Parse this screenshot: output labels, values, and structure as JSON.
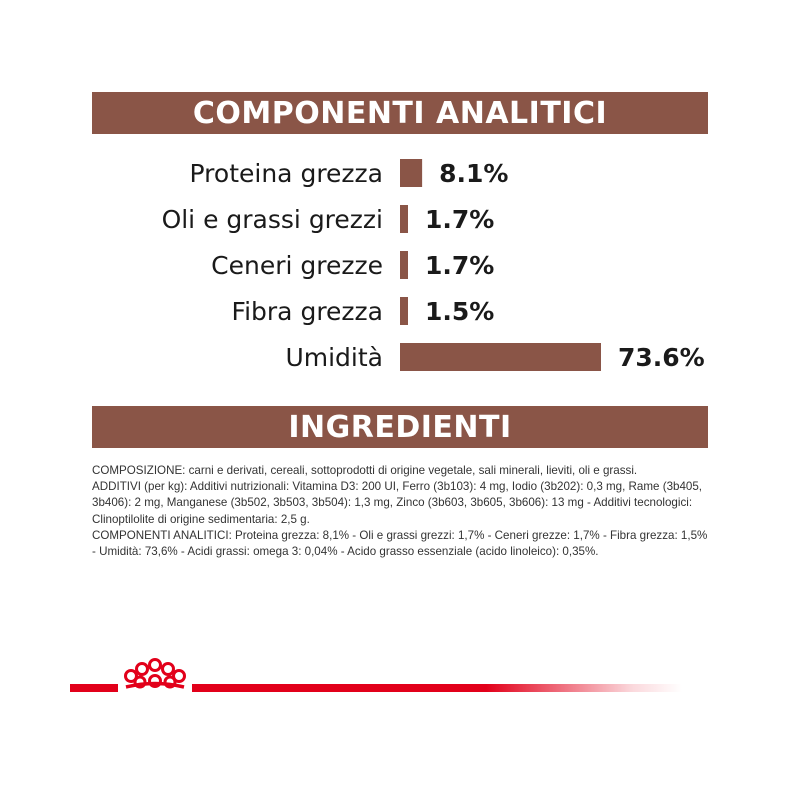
{
  "header": {
    "title": "COMPONENTI ANALITICI"
  },
  "ingredients_header": {
    "title": "INGREDIENTI"
  },
  "chart_data": {
    "type": "bar",
    "orientation": "horizontal",
    "categories": [
      "Proteina grezza",
      "Oli e grassi grezzi",
      "Ceneri grezze",
      "Fibra grezza",
      "Umidità"
    ],
    "values": [
      8.1,
      1.7,
      1.7,
      1.5,
      73.6
    ],
    "value_labels": [
      "8.1%",
      "1.7%",
      "1.7%",
      "1.5%",
      "73.6%"
    ],
    "title": "COMPONENTI ANALITICI",
    "xlabel": "",
    "ylabel": "",
    "xlim": [
      0,
      73.6
    ],
    "grid": false,
    "bar_color": "#8a5547"
  },
  "ingredients": {
    "composizione": "COMPOSIZIONE: carni e derivati, cereali, sottoprodotti di origine vegetale, sali minerali, lieviti, oli e grassi.",
    "additivi": "ADDITIVI (per kg): Additivi nutrizionali: Vitamina D3: 200 UI, Ferro (3b103): 4 mg, Iodio (3b202): 0,3 mg, Rame (3b405, 3b406): 2 mg, Manganese (3b502, 3b503, 3b504): 1,3 mg, Zinco (3b603, 3b605, 3b606): 13 mg - Additivi tecnologici: Clinoptilolite di origine sedimentaria: 2,5 g.",
    "componenti": "COMPONENTI ANALITICI: Proteina grezza: 8,1% - Oli e grassi grezzi: 1,7% - Ceneri grezze: 1,7% - Fibra grezza: 1,5% - Umidità: 73,6% - Acidi grassi: omega 3: 0,04% - Acido grasso essenziale (acido linoleico): 0,35%."
  },
  "brand": {
    "logo": "royal-canin-crown-icon",
    "accent_color": "#e2001a",
    "banner_color": "#8a5547"
  }
}
